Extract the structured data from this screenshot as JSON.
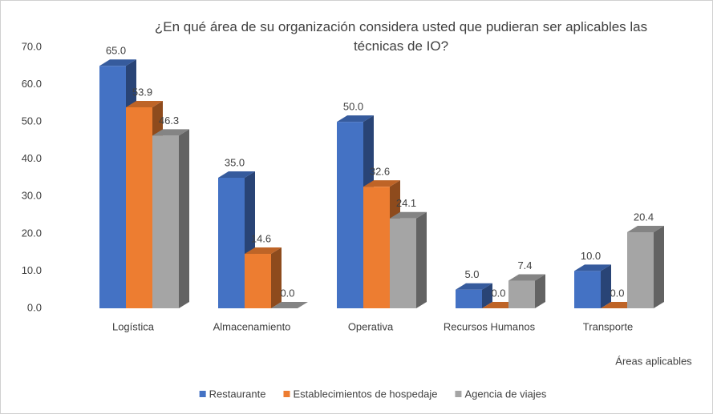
{
  "chart_data": {
    "type": "bar3d",
    "title": "¿En qué área de su organización considera usted que pudieran ser aplicables las técnicas de IO?",
    "x_label": "Áreas  aplicables",
    "categories": [
      "Logística",
      "Almacenamiento",
      "Operativa",
      "Recursos Humanos",
      "Transporte"
    ],
    "series": [
      {
        "name": "Restaurante",
        "color": "#4472c4",
        "values": [
          65.0,
          35.0,
          50.0,
          5.0,
          10.0
        ],
        "value_labels": [
          "65.0",
          "35.0",
          "50.0",
          "5.0",
          "10.0"
        ]
      },
      {
        "name": "Establecimientos de hospedaje",
        "color": "#ed7d31",
        "values": [
          53.9,
          14.6,
          32.6,
          0.0,
          0.0
        ],
        "value_labels": [
          "53.9",
          "14.6",
          "32.6",
          "0.0",
          "0.0"
        ]
      },
      {
        "name": "Agencia de viajes",
        "color": "#a5a5a5",
        "values": [
          46.3,
          0.0,
          24.1,
          7.4,
          20.4
        ],
        "value_labels": [
          "46.3",
          "0.0",
          "24.1",
          "7.4",
          "20.4"
        ]
      }
    ],
    "ylim": [
      0,
      70
    ],
    "yticks": [
      {
        "value": 0,
        "label": "0.0"
      },
      {
        "value": 10,
        "label": "10.0"
      },
      {
        "value": 20,
        "label": "20.0"
      },
      {
        "value": 30,
        "label": "30.0"
      },
      {
        "value": 40,
        "label": "40.0"
      },
      {
        "value": 50,
        "label": "50.0"
      },
      {
        "value": 60,
        "label": "60.0"
      },
      {
        "value": 70,
        "label": "70.0"
      }
    ],
    "legend": "bottom"
  }
}
